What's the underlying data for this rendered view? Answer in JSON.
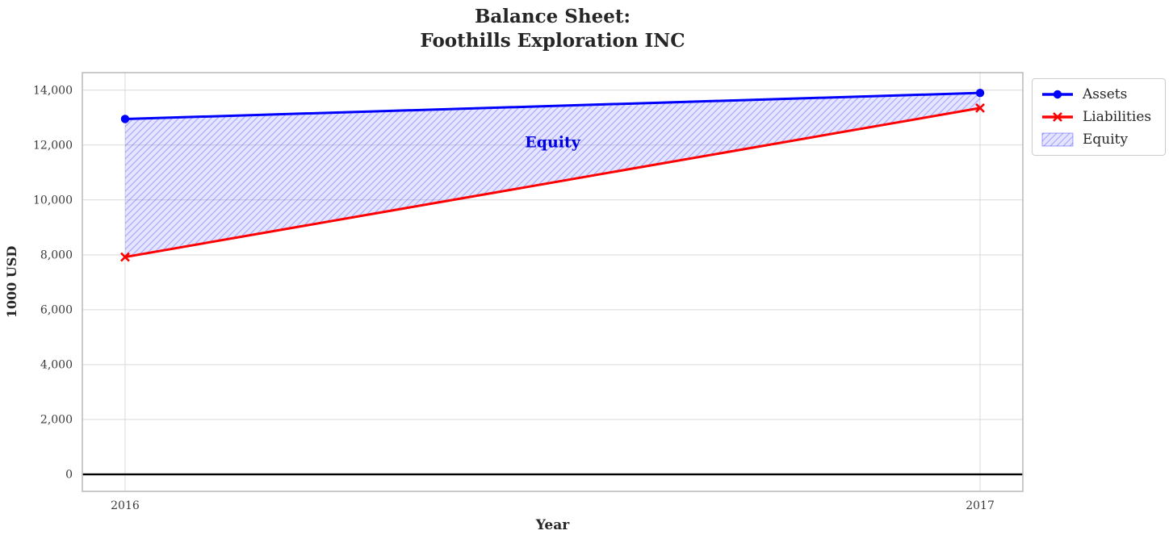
{
  "chart": {
    "title_line1": "Balance Sheet:",
    "title_line2": "Foothills Exploration INC",
    "xlabel": "Year",
    "ylabel": "1000 USD"
  },
  "chart_data": {
    "type": "line",
    "title": "Balance Sheet:\nFoothills Exploration INC",
    "xlabel": "Year",
    "ylabel": "1000 USD",
    "x": [
      2016,
      2017
    ],
    "series": [
      {
        "name": "Assets",
        "values": [
          12950,
          13900
        ],
        "color": "#0000ff",
        "marker": "circle"
      },
      {
        "name": "Liabilities",
        "values": [
          7920,
          13350
        ],
        "color": "#ff0000",
        "marker": "x"
      }
    ],
    "area": {
      "name": "Equity",
      "between": [
        "Assets",
        "Liabilities"
      ],
      "derived_equity_values": [
        5030,
        550
      ],
      "fill": "rgba(0,0,255,0.10)",
      "hatch": "//",
      "hatch_color": "rgba(0,0,255,0.25)"
    },
    "annotation": {
      "text": "Equity",
      "x": 2016.5,
      "y": 12100,
      "color": "#0000e0"
    },
    "x_ticks": [
      2016,
      2017
    ],
    "x_tick_labels": [
      "2016",
      "2017"
    ],
    "y_ticks": [
      0,
      2000,
      4000,
      6000,
      8000,
      10000,
      12000,
      14000
    ],
    "y_tick_labels": [
      "0",
      "2,000",
      "4,000",
      "6,000",
      "8,000",
      "10,000",
      "12,000",
      "14,000"
    ],
    "xlim": [
      2015.95,
      2017.05
    ],
    "ylim": [
      -620,
      14640
    ],
    "grid": true,
    "zero_line": true,
    "legend": {
      "position": "outside-upper-right",
      "items": [
        {
          "label": "Assets",
          "handle": "line-circle",
          "color": "#0000ff"
        },
        {
          "label": "Liabilities",
          "handle": "line-x",
          "color": "#ff0000"
        },
        {
          "label": "Equity",
          "handle": "patch-hatch",
          "color": "rgba(0,0,255,0.10)"
        }
      ]
    },
    "colors": {
      "grid": "#d9d9d9",
      "spine": "#b8b8b8",
      "tick_label": "#3a3a3a",
      "zero_line": "#000000"
    }
  }
}
